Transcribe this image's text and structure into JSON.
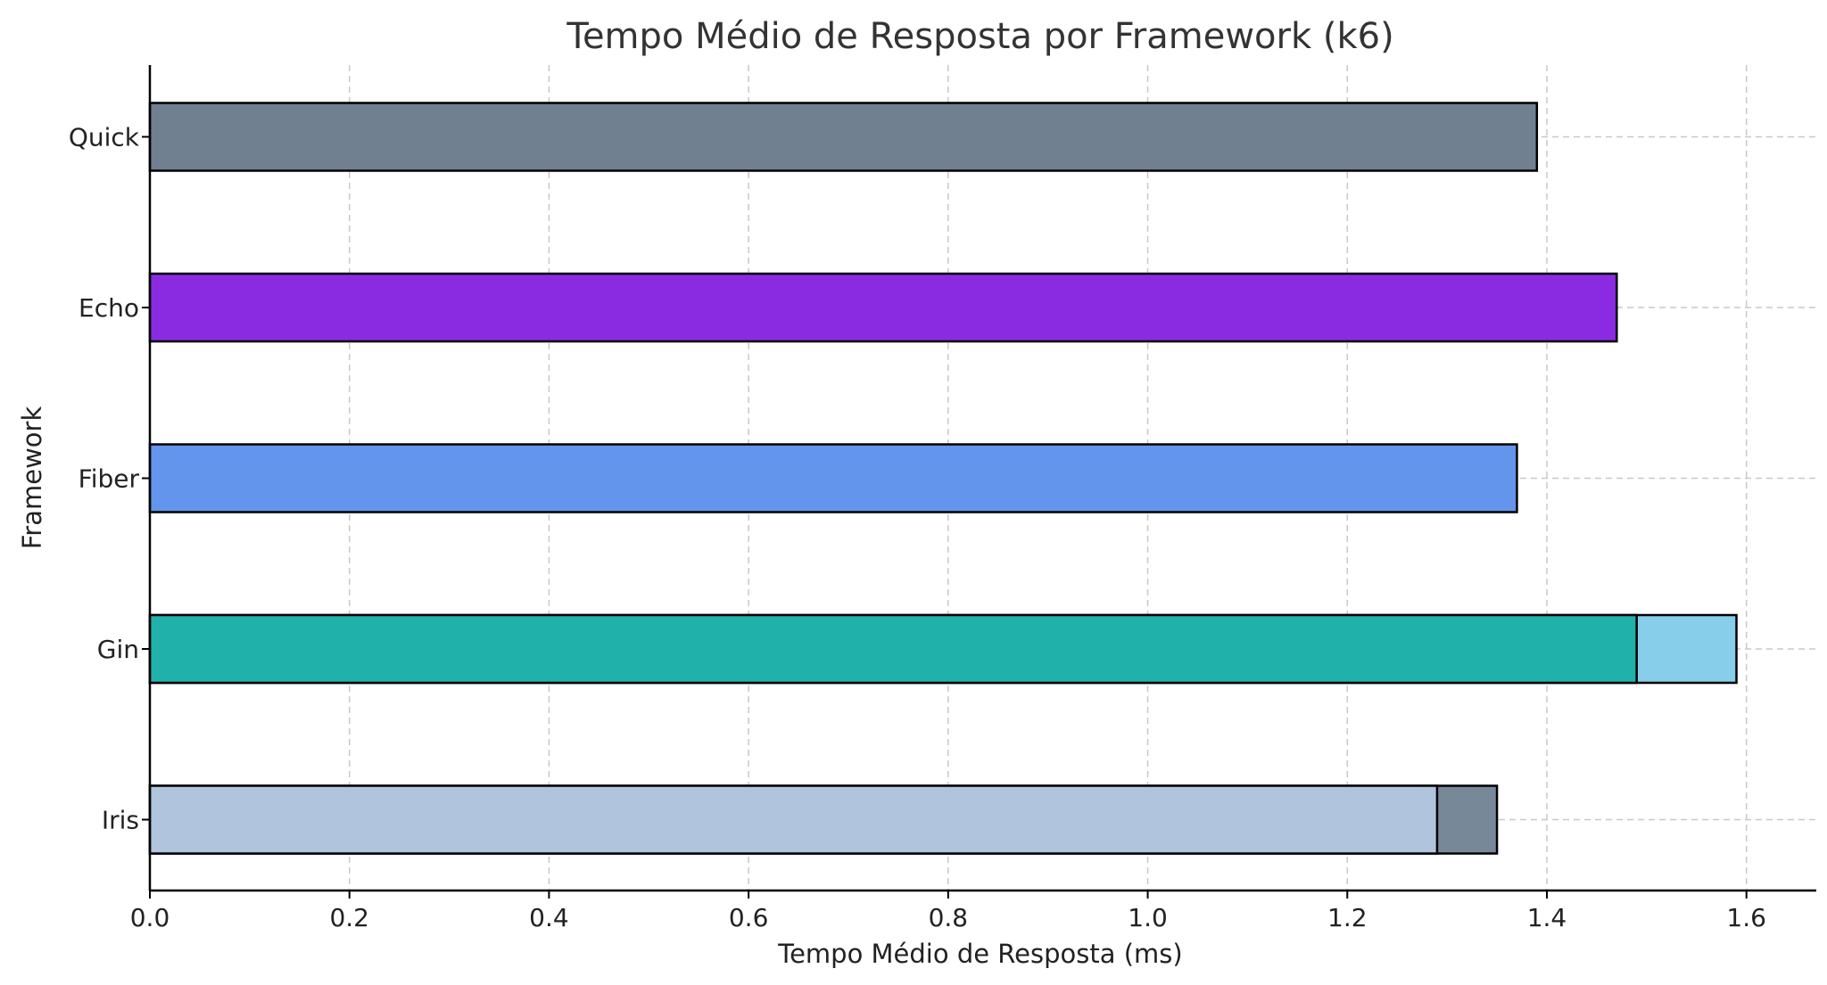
{
  "chart_data": {
    "type": "bar",
    "orientation": "horizontal",
    "title": "Tempo Médio de Resposta por Framework (k6)",
    "xlabel": "Tempo Médio de Resposta (ms)",
    "ylabel": "Framework",
    "xlim": [
      0,
      1.67
    ],
    "xticks": [
      "0.0",
      "0.2",
      "0.4",
      "0.6",
      "0.8",
      "1.0",
      "1.2",
      "1.4",
      "1.6"
    ],
    "grid": true,
    "categories": [
      "Quick",
      "Echo",
      "Fiber",
      "Gin",
      "Iris"
    ],
    "bars": [
      {
        "category": "Quick",
        "value": 1.39,
        "color": "#708090"
      },
      {
        "category": "Echo",
        "value": 1.47,
        "color": "#8a2be2"
      },
      {
        "category": "Fiber",
        "value": 1.37,
        "color": "#6495ed"
      },
      {
        "category": "Gin",
        "value": 1.59,
        "color": "#87ceeb"
      },
      {
        "category": "Gin",
        "value": 1.49,
        "color": "#20b2aa"
      },
      {
        "category": "Iris",
        "value": 1.35,
        "color": "#778899"
      },
      {
        "category": "Iris",
        "value": 1.29,
        "color": "#b0c4de"
      }
    ]
  }
}
